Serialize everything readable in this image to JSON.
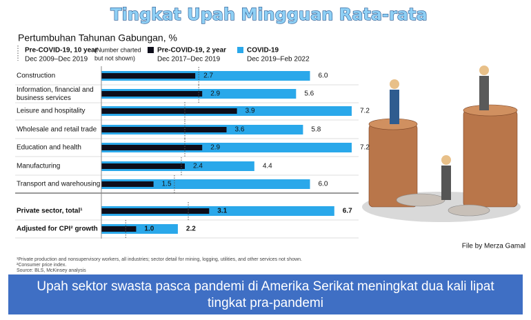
{
  "title": "Tingkat Upah Mingguan Rata-rata",
  "chart_data": {
    "type": "bar",
    "subtitle": "Pertumbuhan Tahunan Gabungan, %",
    "categories": [
      "Construction",
      "Information, financial and business services",
      "Leisure and hospitality",
      "Wholesale and retail trade",
      "Education and health",
      "Manufacturing",
      "Transport and warehousing",
      "Private sector, total¹",
      "Adjusted for CPI² growth"
    ],
    "series": [
      {
        "name": "Pre-COVID-19, 10 year",
        "period": "Dec 2009–Dec 2019",
        "note": [
          "(Number charted",
          "but not shown)"
        ],
        "color": "#555555",
        "values": [
          2.8,
          2.8,
          2.4,
          2.4,
          2.4,
          2.3,
          2.1,
          2.5,
          0.7
        ]
      },
      {
        "name": "Pre-COVID-19, 2 year",
        "period": "Dec 2017–Dec 2019",
        "color": "#0d0d1a",
        "values": [
          2.7,
          2.9,
          3.9,
          3.6,
          2.9,
          2.4,
          1.5,
          3.1,
          1.0
        ],
        "value_labels": [
          "2.7",
          "2.9",
          "3.9",
          "3.6",
          "2.9",
          "2.4",
          "1.5",
          "3.1",
          "1.0"
        ]
      },
      {
        "name": "COVID-19",
        "period": "Dec 2019–Feb 2022",
        "color": "#2aa8ea",
        "values": [
          6.0,
          5.6,
          7.2,
          5.8,
          7.2,
          4.4,
          6.0,
          6.7,
          2.2
        ],
        "value_labels": [
          "6.0",
          "5.6",
          "7.2",
          "5.8",
          "7.2",
          "4.4",
          "6.0",
          "6.7",
          "2.2"
        ]
      }
    ],
    "footnotes": [
      "¹Private production and nonsupervisory workers, all industries; sector detail for mining, logging, utilities, and other services not shown.",
      "²Consumer price index.",
      "Source: BLS, McKinsey analysis"
    ]
  },
  "credit": "File by Merza Gamal",
  "banner": [
    "Upah sektor swasta pasca pandemi di Amerika Serikat meningkat dua kali lipat",
    "tingkat pra-pandemi"
  ]
}
